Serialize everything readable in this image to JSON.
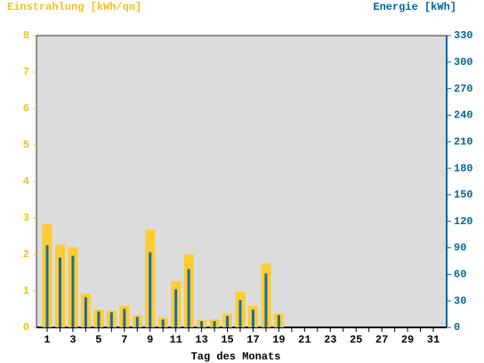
{
  "chart_data": {
    "type": "bar",
    "title_left": "Einstrahlung [kWh/qm]",
    "title_right": "Energie [kWh]",
    "x_label": "Tag des Monats",
    "categories": [
      "1",
      null,
      "3",
      null,
      "5",
      null,
      "7",
      null,
      "9",
      null,
      "11",
      null,
      "13",
      null,
      "15",
      null,
      "17",
      null,
      "19",
      null,
      "21",
      null,
      "23",
      null,
      "25",
      null,
      "27",
      null,
      "29",
      null,
      "31"
    ],
    "series": [
      {
        "name": "Einstrahlung",
        "color": "#ffcc33",
        "axis": "y",
        "values": [
          2.83,
          2.27,
          2.2,
          0.93,
          0.49,
          0.46,
          0.59,
          0.34,
          2.68,
          0.27,
          1.27,
          2.0,
          0.2,
          0.22,
          0.37,
          0.98,
          0.59,
          1.76,
          0.37,
          null,
          null,
          null,
          null,
          null,
          null,
          null,
          null,
          null,
          null,
          null,
          null
        ]
      },
      {
        "name": "Energie",
        "color": "#1a6e9e",
        "axis": "y2",
        "values": [
          93,
          79,
          81,
          34,
          18,
          17,
          21,
          12,
          85,
          9,
          43,
          66,
          7,
          7,
          13,
          31,
          20,
          61,
          14,
          null,
          null,
          null,
          null,
          null,
          null,
          null,
          null,
          null,
          null,
          null,
          null
        ]
      }
    ],
    "ylim": [
      0,
      8
    ],
    "yticks": [
      0,
      1,
      2,
      3,
      4,
      5,
      6,
      7,
      8
    ],
    "y2lim": [
      0,
      330
    ],
    "y2ticks": [
      0,
      30,
      60,
      90,
      120,
      150,
      180,
      210,
      240,
      270,
      300,
      330
    ],
    "left_color": "#f0c020",
    "right_color": "#006699",
    "background": "#dcdcdc"
  }
}
